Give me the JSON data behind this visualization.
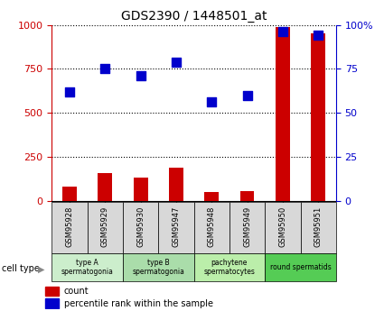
{
  "title": "GDS2390 / 1448501_at",
  "samples": [
    "GSM95928",
    "GSM95929",
    "GSM95930",
    "GSM95947",
    "GSM95948",
    "GSM95949",
    "GSM95950",
    "GSM95951"
  ],
  "counts": [
    80,
    155,
    130,
    185,
    50,
    55,
    990,
    950
  ],
  "percentile_ranks": [
    62,
    75,
    71,
    79,
    56,
    60,
    96,
    94
  ],
  "cell_types": [
    {
      "label": "type A\nspermatogonia",
      "samples": [
        0,
        1
      ],
      "color": "#cceecc"
    },
    {
      "label": "type B\nspermatogonia",
      "samples": [
        2,
        3
      ],
      "color": "#aaddaa"
    },
    {
      "label": "pachytene\nspermatocytes",
      "samples": [
        4,
        5
      ],
      "color": "#bbeeaa"
    },
    {
      "label": "round spermatids",
      "samples": [
        6,
        7
      ],
      "color": "#55cc55"
    }
  ],
  "bar_color": "#cc0000",
  "dot_color": "#0000cc",
  "left_axis_color": "#cc0000",
  "right_axis_color": "#0000cc",
  "ylim_left": [
    0,
    1000
  ],
  "ylim_right": [
    0,
    100
  ],
  "yticks_left": [
    0,
    250,
    500,
    750,
    1000
  ],
  "yticks_right": [
    0,
    25,
    50,
    75,
    100
  ],
  "ytick_labels_right": [
    "0",
    "25",
    "50",
    "75",
    "100%"
  ],
  "bar_width": 0.4,
  "dot_size": 50,
  "bg_color": "#ffffff",
  "grid_color": "black",
  "grid_linestyle": ":",
  "grid_linewidth": 0.8,
  "sample_box_color": "#d8d8d8",
  "sample_box_edge": "black",
  "title_fontsize": 10,
  "tick_fontsize": 8,
  "label_fontsize": 7,
  "sample_fontsize": 6
}
